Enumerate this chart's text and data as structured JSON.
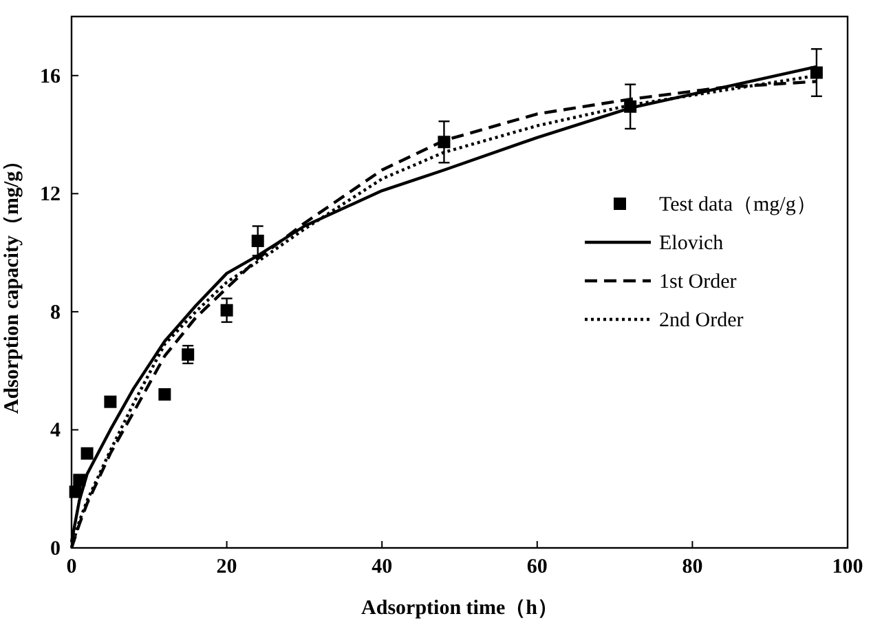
{
  "chart_data": {
    "type": "line",
    "xlabel": "Adsorption time（h）",
    "ylabel": "Adsorption capacity（mg/g）",
    "xlim": [
      0,
      100
    ],
    "ylim": [
      0,
      18
    ],
    "xticks": [
      0,
      20,
      40,
      60,
      80,
      100
    ],
    "yticks": [
      0,
      4,
      8,
      12,
      16
    ],
    "legend": "right",
    "series": [
      {
        "name": "Test data（mg/g）",
        "type": "scatter",
        "marker": "square",
        "color": "#000000",
        "x": [
          0.5,
          1,
          2,
          5,
          12,
          15,
          20,
          24,
          48,
          72,
          96
        ],
        "values": [
          1.9,
          2.3,
          3.2,
          4.95,
          5.2,
          6.55,
          8.05,
          10.4,
          13.75,
          14.95,
          16.1
        ],
        "errors": [
          null,
          null,
          null,
          null,
          null,
          0.3,
          0.4,
          0.5,
          0.7,
          0.75,
          0.8
        ]
      },
      {
        "name": "Elovich",
        "line_style": "solid",
        "color": "#000000",
        "x": [
          0,
          1,
          2,
          5,
          8,
          12,
          16,
          20,
          24,
          30,
          40,
          48,
          60,
          72,
          84,
          96
        ],
        "values": [
          0.2,
          1.6,
          2.5,
          4.0,
          5.4,
          7.0,
          8.2,
          9.3,
          9.9,
          10.9,
          12.1,
          12.8,
          13.9,
          14.9,
          15.6,
          16.3
        ]
      },
      {
        "name": "1st Order",
        "line_style": "dashed",
        "color": "#000000",
        "x": [
          0,
          1,
          2,
          5,
          8,
          12,
          16,
          20,
          24,
          30,
          40,
          48,
          60,
          72,
          84,
          96
        ],
        "values": [
          0,
          0.8,
          1.5,
          3.2,
          4.6,
          6.5,
          7.8,
          8.8,
          9.8,
          11.0,
          12.8,
          13.8,
          14.7,
          15.2,
          15.6,
          15.8
        ]
      },
      {
        "name": "2nd Order",
        "line_style": "dotted",
        "color": "#000000",
        "x": [
          0,
          1,
          2,
          5,
          8,
          12,
          16,
          20,
          24,
          30,
          40,
          48,
          60,
          72,
          84,
          96
        ],
        "values": [
          0,
          0.9,
          1.6,
          3.3,
          4.9,
          6.9,
          8.0,
          9.0,
          9.7,
          10.8,
          12.5,
          13.4,
          14.3,
          15.0,
          15.5,
          16.0
        ]
      }
    ]
  }
}
